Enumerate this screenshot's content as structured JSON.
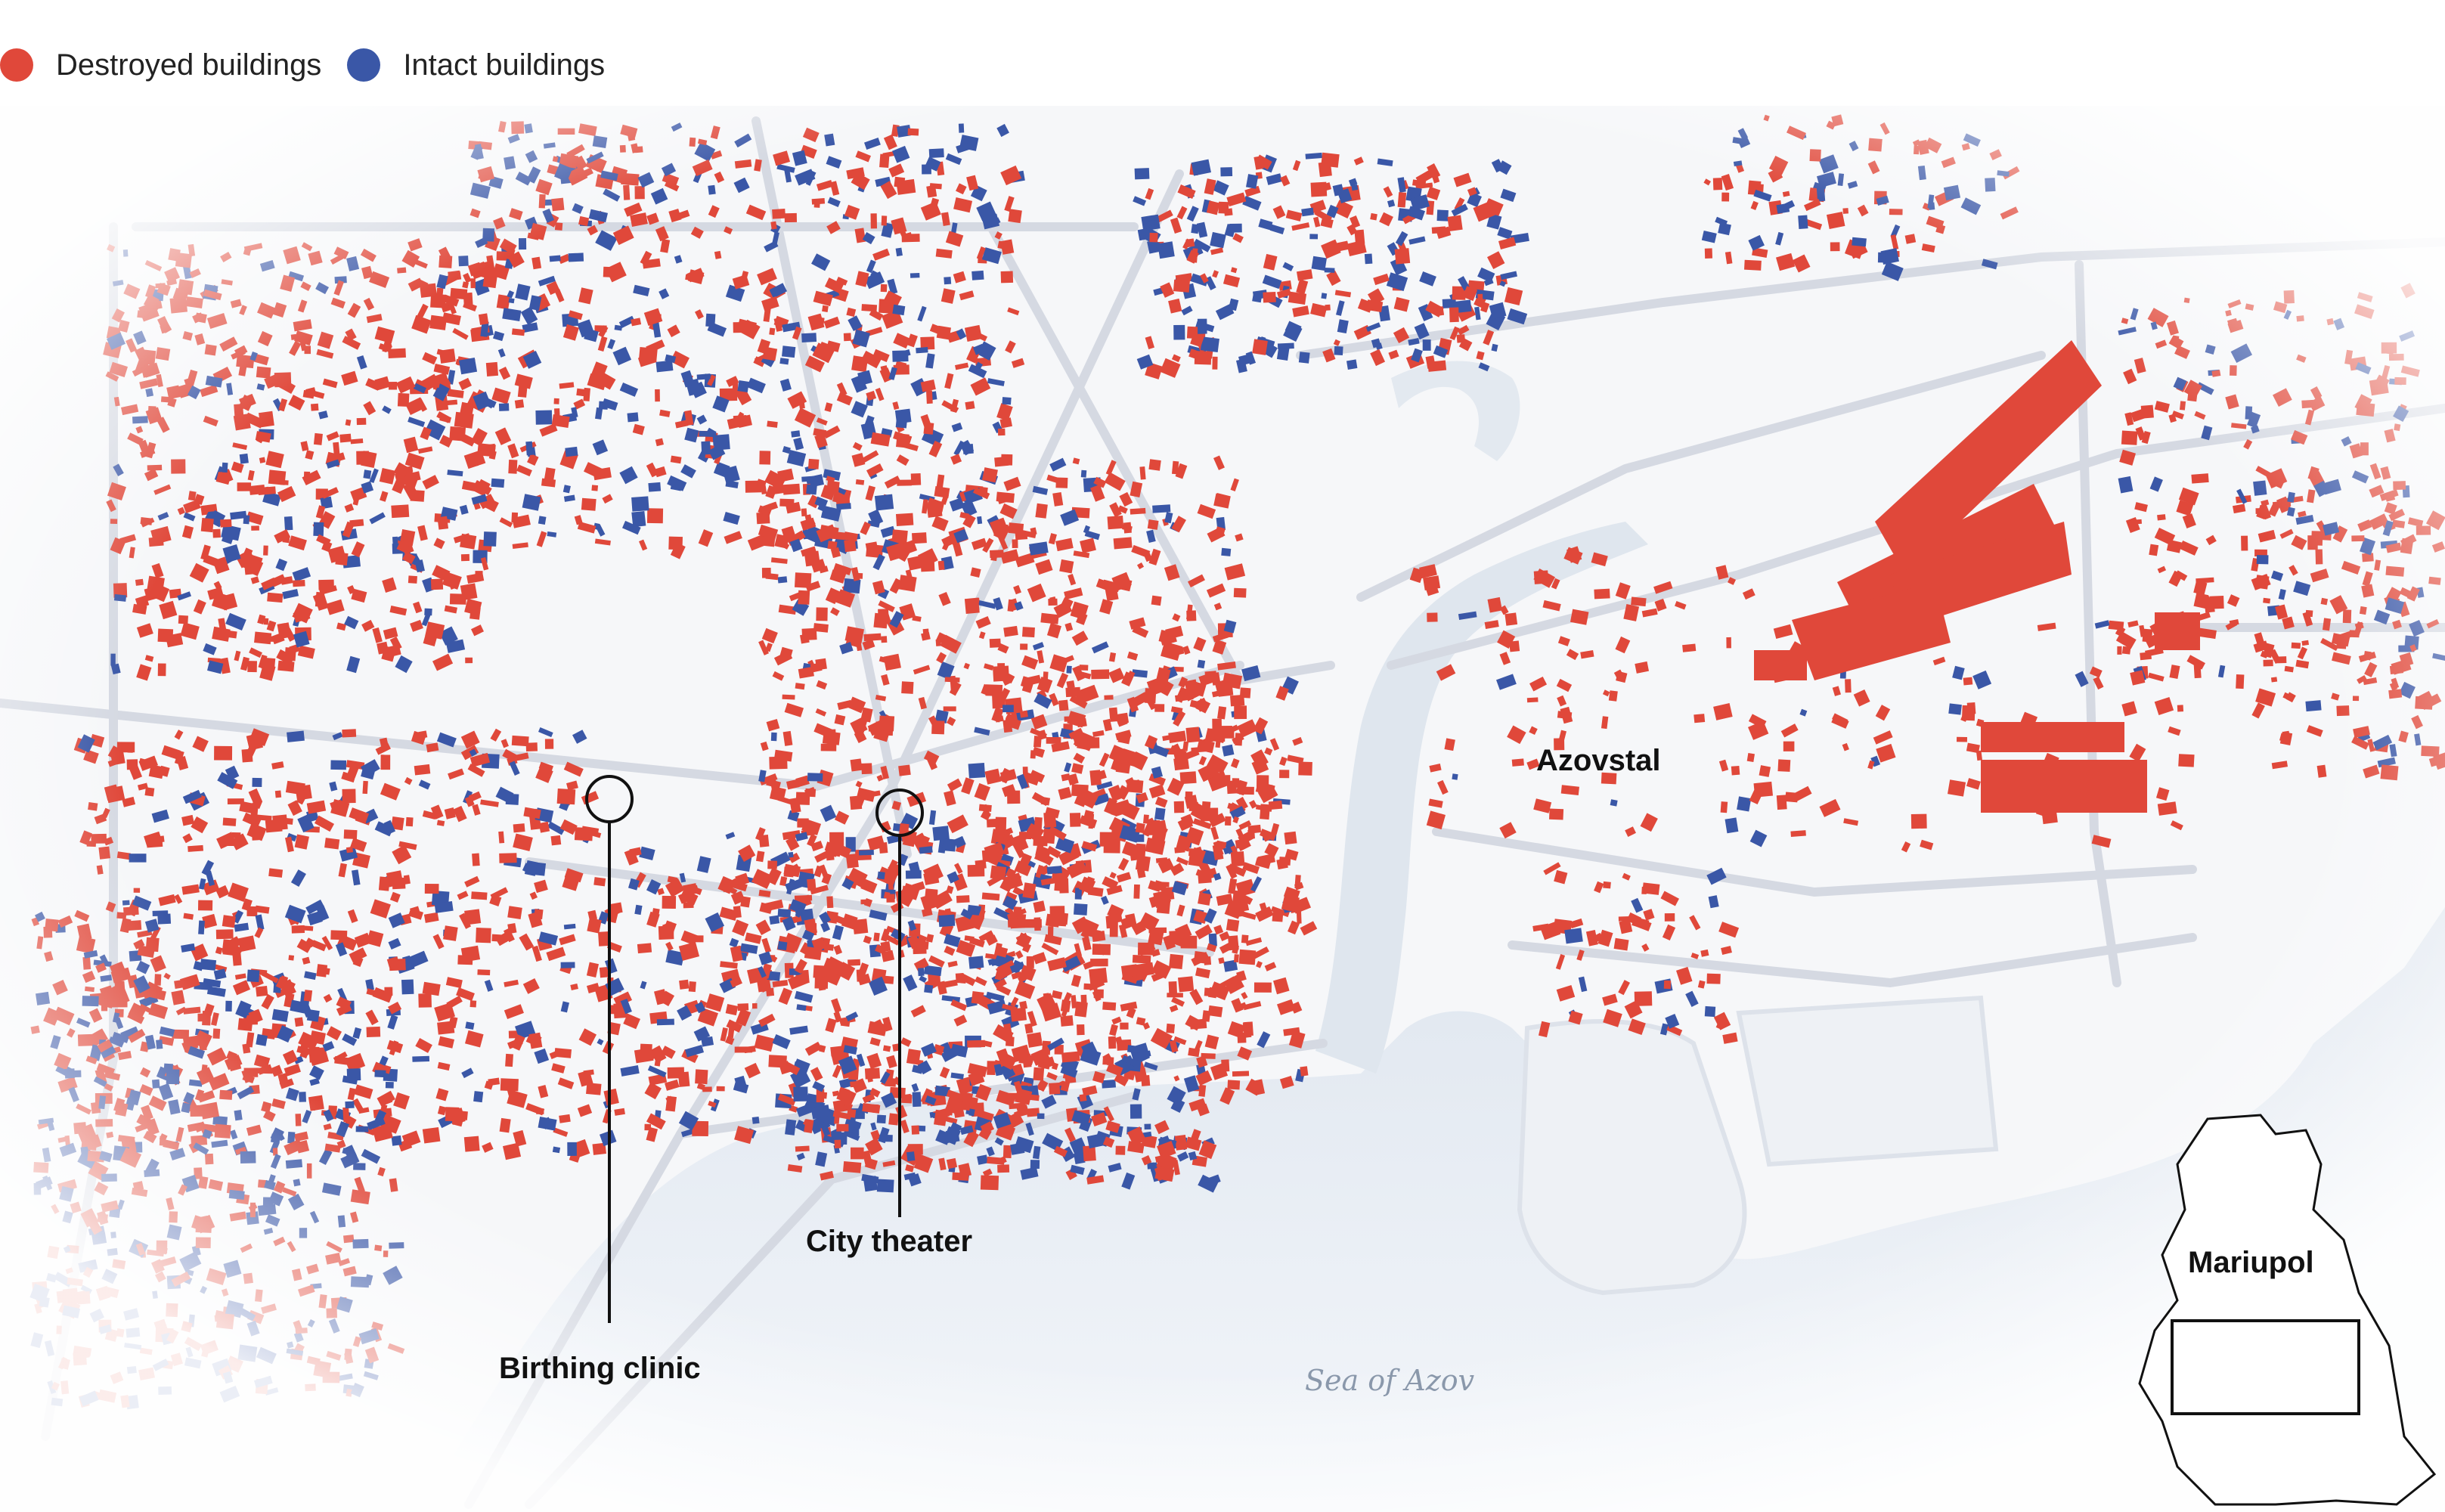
{
  "legend": {
    "destroyed_label": "Destroyed buildings",
    "intact_label": "Intact buildings"
  },
  "labels": {
    "azovstal": "Azovstal",
    "city_theater": "City theater",
    "birthing_clinic": "Birthing clinic",
    "sea": "Sea of Azov",
    "inset_city": "Mariupol"
  },
  "colors": {
    "destroyed": "#e0483a",
    "intact": "#3a57a7",
    "road": "#d5d9e2",
    "water": "#e1e7ef",
    "land": "#f7f8fa"
  },
  "icons": {
    "destroyed_marker": "red-circle-icon",
    "intact_marker": "blue-circle-icon"
  }
}
